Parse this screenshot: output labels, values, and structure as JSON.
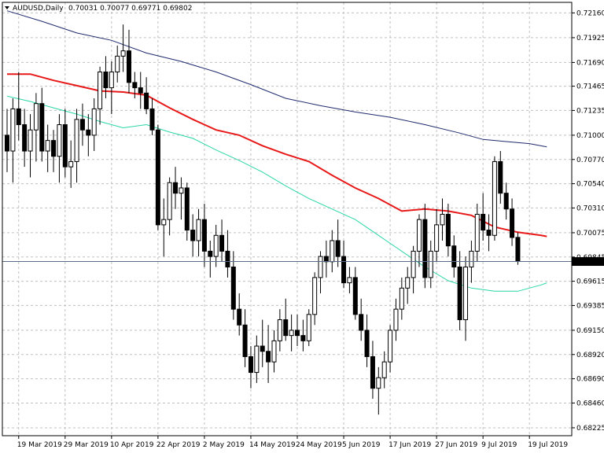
{
  "header": {
    "symbol_label": "AUDUSD,Daily",
    "ohlc_label": "0.70031 0.70077 0.69771 0.69802",
    "menu_icon": "triangle-down-icon"
  },
  "current_price_label": "0.69802",
  "colors": {
    "background": "#ffffff",
    "grid": "#c0c0c0",
    "bull_body": "#ffffff",
    "bear_body": "#000000",
    "candle_outline": "#000000",
    "ma_slow": "#1f2a6e",
    "ma_mid": "#e81818",
    "ma_fast": "#2ad6a6",
    "price_line": "#5a6b86",
    "price_tag_bg": "#000000",
    "price_tag_fg": "#ffffff"
  },
  "chart_data": {
    "type": "candlestick",
    "ylim": [
      0.6815,
      0.7226
    ],
    "y_ticks": [
      "0.72160",
      "0.71925",
      "0.71690",
      "0.71465",
      "0.71235",
      "0.71000",
      "0.70770",
      "0.70540",
      "0.70310",
      "0.70075",
      "0.69845",
      "0.69615",
      "0.69385",
      "0.69150",
      "0.68920",
      "0.68690",
      "0.68460",
      "0.68225"
    ],
    "x_tick_labels": [
      "19 Mar 2019",
      "29 Mar 2019",
      "10 Apr 2019",
      "22 Apr 2019",
      "2 May 2019",
      "14 May 2019",
      "24 May 2019",
      "5 Jun 2019",
      "17 Jun 2019",
      "27 Jun 2019",
      "9 Jul 2019",
      "19 Jul 2019"
    ],
    "x_tick_index": [
      2,
      10,
      18,
      26,
      34,
      42,
      50,
      58,
      66,
      74,
      82,
      90
    ],
    "candles": [
      [
        0.71,
        0.7125,
        0.7065,
        0.7085
      ],
      [
        0.7085,
        0.7135,
        0.7055,
        0.7125
      ],
      [
        0.7125,
        0.716,
        0.7095,
        0.711
      ],
      [
        0.711,
        0.7125,
        0.707,
        0.7085
      ],
      [
        0.7085,
        0.712,
        0.706,
        0.7105
      ],
      [
        0.7105,
        0.714,
        0.7075,
        0.713
      ],
      [
        0.713,
        0.7145,
        0.7075,
        0.7085
      ],
      [
        0.7085,
        0.711,
        0.7065,
        0.7095
      ],
      [
        0.7095,
        0.7105,
        0.7065,
        0.708
      ],
      [
        0.708,
        0.712,
        0.7055,
        0.711
      ],
      [
        0.711,
        0.7125,
        0.706,
        0.707
      ],
      [
        0.707,
        0.7095,
        0.705,
        0.7075
      ],
      [
        0.7075,
        0.7125,
        0.7055,
        0.7115
      ],
      [
        0.7115,
        0.713,
        0.709,
        0.7105
      ],
      [
        0.7105,
        0.712,
        0.708,
        0.71
      ],
      [
        0.71,
        0.7135,
        0.7085,
        0.7125
      ],
      [
        0.7125,
        0.7165,
        0.711,
        0.716
      ],
      [
        0.716,
        0.7175,
        0.7135,
        0.7145
      ],
      [
        0.7145,
        0.717,
        0.712,
        0.716
      ],
      [
        0.716,
        0.7185,
        0.715,
        0.7175
      ],
      [
        0.7175,
        0.7205,
        0.716,
        0.718
      ],
      [
        0.718,
        0.72,
        0.714,
        0.715
      ],
      [
        0.715,
        0.716,
        0.7135,
        0.7145
      ],
      [
        0.7145,
        0.716,
        0.7125,
        0.714
      ],
      [
        0.714,
        0.7155,
        0.712,
        0.7125
      ],
      [
        0.7125,
        0.7135,
        0.71,
        0.7105
      ],
      [
        0.7105,
        0.711,
        0.701,
        0.7015
      ],
      [
        0.7015,
        0.704,
        0.6985,
        0.702
      ],
      [
        0.702,
        0.706,
        0.7005,
        0.7055
      ],
      [
        0.7055,
        0.707,
        0.703,
        0.7045
      ],
      [
        0.7045,
        0.706,
        0.702,
        0.705
      ],
      [
        0.705,
        0.7055,
        0.7,
        0.701
      ],
      [
        0.701,
        0.7025,
        0.6985,
        0.7
      ],
      [
        0.7,
        0.703,
        0.6985,
        0.702
      ],
      [
        0.702,
        0.7035,
        0.6975,
        0.699
      ],
      [
        0.699,
        0.7,
        0.6965,
        0.6985
      ],
      [
        0.6985,
        0.7015,
        0.6975,
        0.7005
      ],
      [
        0.7005,
        0.702,
        0.698,
        0.699
      ],
      [
        0.699,
        0.701,
        0.6965,
        0.6975
      ],
      [
        0.6975,
        0.699,
        0.6925,
        0.6935
      ],
      [
        0.6935,
        0.695,
        0.691,
        0.692
      ],
      [
        0.692,
        0.6935,
        0.688,
        0.689
      ],
      [
        0.689,
        0.69,
        0.686,
        0.6875
      ],
      [
        0.6875,
        0.691,
        0.6865,
        0.69
      ],
      [
        0.69,
        0.6925,
        0.688,
        0.6895
      ],
      [
        0.6895,
        0.692,
        0.6865,
        0.6885
      ],
      [
        0.6885,
        0.6915,
        0.6875,
        0.6905
      ],
      [
        0.6905,
        0.6935,
        0.6895,
        0.6925
      ],
      [
        0.6925,
        0.6945,
        0.6905,
        0.691
      ],
      [
        0.691,
        0.693,
        0.6895,
        0.6915
      ],
      [
        0.6915,
        0.693,
        0.69,
        0.691
      ],
      [
        0.691,
        0.6925,
        0.6895,
        0.6905
      ],
      [
        0.6905,
        0.6935,
        0.69,
        0.693
      ],
      [
        0.693,
        0.697,
        0.692,
        0.6965
      ],
      [
        0.6965,
        0.699,
        0.695,
        0.6985
      ],
      [
        0.6985,
        0.7,
        0.6965,
        0.698
      ],
      [
        0.698,
        0.701,
        0.697,
        0.7
      ],
      [
        0.7,
        0.702,
        0.6975,
        0.6985
      ],
      [
        0.6985,
        0.7,
        0.6955,
        0.696
      ],
      [
        0.696,
        0.6975,
        0.695,
        0.6965
      ],
      [
        0.6965,
        0.6975,
        0.6925,
        0.693
      ],
      [
        0.693,
        0.6945,
        0.6905,
        0.6915
      ],
      [
        0.6915,
        0.693,
        0.688,
        0.689
      ],
      [
        0.689,
        0.6905,
        0.685,
        0.686
      ],
      [
        0.686,
        0.688,
        0.6835,
        0.687
      ],
      [
        0.687,
        0.6895,
        0.686,
        0.6885
      ],
      [
        0.6885,
        0.692,
        0.6875,
        0.6915
      ],
      [
        0.6915,
        0.6945,
        0.6905,
        0.6935
      ],
      [
        0.6935,
        0.6965,
        0.6925,
        0.6955
      ],
      [
        0.6955,
        0.6975,
        0.694,
        0.6965
      ],
      [
        0.6965,
        0.6995,
        0.695,
        0.699
      ],
      [
        0.699,
        0.7025,
        0.6975,
        0.702
      ],
      [
        0.702,
        0.7035,
        0.6955,
        0.6965
      ],
      [
        0.6965,
        0.7,
        0.6955,
        0.699
      ],
      [
        0.699,
        0.703,
        0.698,
        0.7015
      ],
      [
        0.7015,
        0.704,
        0.7,
        0.7025
      ],
      [
        0.7025,
        0.7035,
        0.6985,
        0.6995
      ],
      [
        0.6995,
        0.7005,
        0.6965,
        0.6975
      ],
      [
        0.6975,
        0.699,
        0.6915,
        0.6925
      ],
      [
        0.6925,
        0.6985,
        0.6905,
        0.6975
      ],
      [
        0.6975,
        0.7,
        0.696,
        0.699
      ],
      [
        0.699,
        0.7035,
        0.698,
        0.7025
      ],
      [
        0.7025,
        0.7045,
        0.7,
        0.701
      ],
      [
        0.701,
        0.7025,
        0.699,
        0.7005
      ],
      [
        0.7005,
        0.708,
        0.7,
        0.7075
      ],
      [
        0.7075,
        0.7085,
        0.7035,
        0.7045
      ],
      [
        0.7045,
        0.7055,
        0.702,
        0.703
      ],
      [
        0.703,
        0.704,
        0.6995,
        0.7003
      ],
      [
        0.70031,
        0.70077,
        0.69771,
        0.69802
      ]
    ],
    "series": [
      {
        "color_key": "ma_slow",
        "points": [
          [
            0,
            0.7218
          ],
          [
            6,
            0.7208
          ],
          [
            12,
            0.7197
          ],
          [
            18,
            0.719
          ],
          [
            24,
            0.7178
          ],
          [
            30,
            0.717
          ],
          [
            36,
            0.716
          ],
          [
            42,
            0.7148
          ],
          [
            48,
            0.7135
          ],
          [
            54,
            0.7128
          ],
          [
            60,
            0.7122
          ],
          [
            66,
            0.7117
          ],
          [
            72,
            0.711
          ],
          [
            78,
            0.7102
          ],
          [
            82,
            0.7096
          ],
          [
            86,
            0.7094
          ],
          [
            90,
            0.7092
          ],
          [
            93,
            0.7089
          ]
        ]
      },
      {
        "color_key": "ma_mid",
        "points": [
          [
            0,
            0.7158
          ],
          [
            4,
            0.7158
          ],
          [
            8,
            0.7152
          ],
          [
            12,
            0.7147
          ],
          [
            16,
            0.7142
          ],
          [
            20,
            0.7141
          ],
          [
            24,
            0.7138
          ],
          [
            28,
            0.7126
          ],
          [
            32,
            0.7115
          ],
          [
            36,
            0.7105
          ],
          [
            40,
            0.71
          ],
          [
            44,
            0.709
          ],
          [
            48,
            0.7082
          ],
          [
            52,
            0.7075
          ],
          [
            56,
            0.7062
          ],
          [
            60,
            0.705
          ],
          [
            64,
            0.704
          ],
          [
            68,
            0.7028
          ],
          [
            72,
            0.703
          ],
          [
            76,
            0.7028
          ],
          [
            80,
            0.7024
          ],
          [
            84,
            0.7013
          ],
          [
            88,
            0.7008
          ],
          [
            92,
            0.7005
          ],
          [
            93,
            0.7004
          ]
        ]
      },
      {
        "color_key": "ma_fast",
        "points": [
          [
            0,
            0.7137
          ],
          [
            4,
            0.7132
          ],
          [
            8,
            0.7126
          ],
          [
            12,
            0.712
          ],
          [
            16,
            0.7113
          ],
          [
            20,
            0.7107
          ],
          [
            24,
            0.711
          ],
          [
            28,
            0.7103
          ],
          [
            32,
            0.7097
          ],
          [
            36,
            0.7086
          ],
          [
            40,
            0.7076
          ],
          [
            44,
            0.7065
          ],
          [
            48,
            0.7052
          ],
          [
            52,
            0.704
          ],
          [
            56,
            0.703
          ],
          [
            60,
            0.702
          ],
          [
            64,
            0.7005
          ],
          [
            68,
            0.699
          ],
          [
            72,
            0.6975
          ],
          [
            76,
            0.6962
          ],
          [
            80,
            0.6955
          ],
          [
            84,
            0.6952
          ],
          [
            88,
            0.6952
          ],
          [
            92,
            0.6958
          ],
          [
            93,
            0.696
          ]
        ]
      }
    ],
    "current_price": 0.69802
  }
}
